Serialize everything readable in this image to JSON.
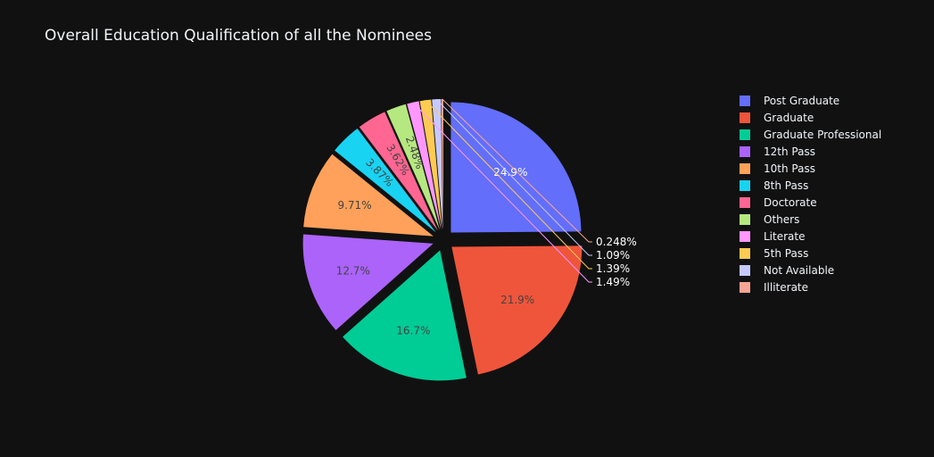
{
  "chart_data": {
    "type": "pie",
    "title": "Overall Education Qualification of all the Nominees",
    "categories": [
      "Post Graduate",
      "Graduate",
      "Graduate Professional",
      "12th Pass",
      "10th Pass",
      "8th Pass",
      "Doctorate",
      "Others",
      "Literate",
      "5th Pass",
      "Not Available",
      "Illiterate"
    ],
    "values": [
      24.9,
      21.9,
      16.7,
      12.7,
      9.71,
      3.87,
      3.62,
      2.48,
      1.49,
      1.39,
      1.09,
      0.248
    ],
    "labels": [
      "24.9%",
      "21.9%",
      "16.7%",
      "12.7%",
      "9.71%",
      "3.87%",
      "3.62%",
      "2.48%",
      "1.49%",
      "1.39%",
      "1.09%",
      "0.248%"
    ],
    "colors": [
      "#636efa",
      "#EF553B",
      "#00cc96",
      "#ab63fa",
      "#FFA15A",
      "#19d3f3",
      "#FF6692",
      "#B6E880",
      "#FF97FF",
      "#FECB52",
      "#c6c9fe",
      "#f7a594"
    ],
    "legend_position": "right"
  }
}
